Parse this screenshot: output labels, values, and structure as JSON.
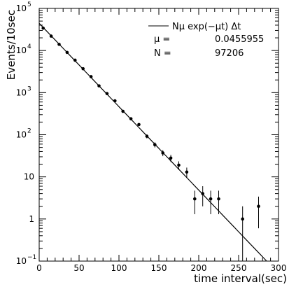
{
  "chart_data": {
    "type": "scatter",
    "title": "",
    "xlabel": "time interval(sec)",
    "ylabel": "Events/10sec",
    "xlim": [
      0,
      300
    ],
    "ylim": [
      0.1,
      100000
    ],
    "yscale": "log",
    "grid": false,
    "x_ticks": [
      {
        "value": 0,
        "label": "0"
      },
      {
        "value": 50,
        "label": "50"
      },
      {
        "value": 100,
        "label": "100"
      },
      {
        "value": 150,
        "label": "150"
      },
      {
        "value": 200,
        "label": "200"
      },
      {
        "value": 250,
        "label": "250"
      },
      {
        "value": 300,
        "label": "300"
      }
    ],
    "y_ticks": [
      {
        "value": 0.1,
        "base": "10",
        "exp": "−1"
      },
      {
        "value": 1,
        "base": "1",
        "exp": ""
      },
      {
        "value": 10,
        "base": "10",
        "exp": ""
      },
      {
        "value": 100,
        "base": "10",
        "exp": "2"
      },
      {
        "value": 1000,
        "base": "10",
        "exp": "3"
      },
      {
        "value": 10000,
        "base": "10",
        "exp": "4"
      },
      {
        "value": 100000,
        "base": "10",
        "exp": "5"
      }
    ],
    "legend": {
      "placement": "top-right",
      "line_label": "Nμ exp(−μt) Δt",
      "param1_name": "μ =",
      "param1_value": "0.0455955",
      "param2_name": "N =",
      "param2_value": "97206"
    },
    "fit": {
      "N": 97206,
      "mu": 0.0455955,
      "dt": 10,
      "x_range": [
        0,
        300
      ]
    },
    "series": [
      {
        "points": [
          {
            "x": 5,
            "y": 34000,
            "err": 180
          },
          {
            "x": 15,
            "y": 22000,
            "err": 150
          },
          {
            "x": 25,
            "y": 14000,
            "err": 120
          },
          {
            "x": 35,
            "y": 9000,
            "err": 95
          },
          {
            "x": 45,
            "y": 5900,
            "err": 77
          },
          {
            "x": 55,
            "y": 3700,
            "err": 61
          },
          {
            "x": 65,
            "y": 2400,
            "err": 49
          },
          {
            "x": 75,
            "y": 1450,
            "err": 38
          },
          {
            "x": 85,
            "y": 950,
            "err": 31
          },
          {
            "x": 95,
            "y": 640,
            "err": 25
          },
          {
            "x": 105,
            "y": 360,
            "err": 19
          },
          {
            "x": 115,
            "y": 240,
            "err": 15
          },
          {
            "x": 125,
            "y": 175,
            "err": 13
          },
          {
            "x": 135,
            "y": 92,
            "err": 10
          },
          {
            "x": 145,
            "y": 58,
            "err": 8
          },
          {
            "x": 155,
            "y": 37,
            "err": 6
          },
          {
            "x": 165,
            "y": 28,
            "err": 5.3
          },
          {
            "x": 175,
            "y": 19,
            "err": 4.4
          },
          {
            "x": 185,
            "y": 13,
            "err": 3.6
          },
          {
            "x": 195,
            "y": 3,
            "err": 1.7
          },
          {
            "x": 205,
            "y": 4,
            "err": 2
          },
          {
            "x": 215,
            "y": 3,
            "err": 1.7
          },
          {
            "x": 225,
            "y": 3,
            "err": 1.7
          },
          {
            "x": 255,
            "y": 1,
            "err": 1
          },
          {
            "x": 275,
            "y": 2,
            "err": 1.4
          }
        ]
      }
    ]
  }
}
